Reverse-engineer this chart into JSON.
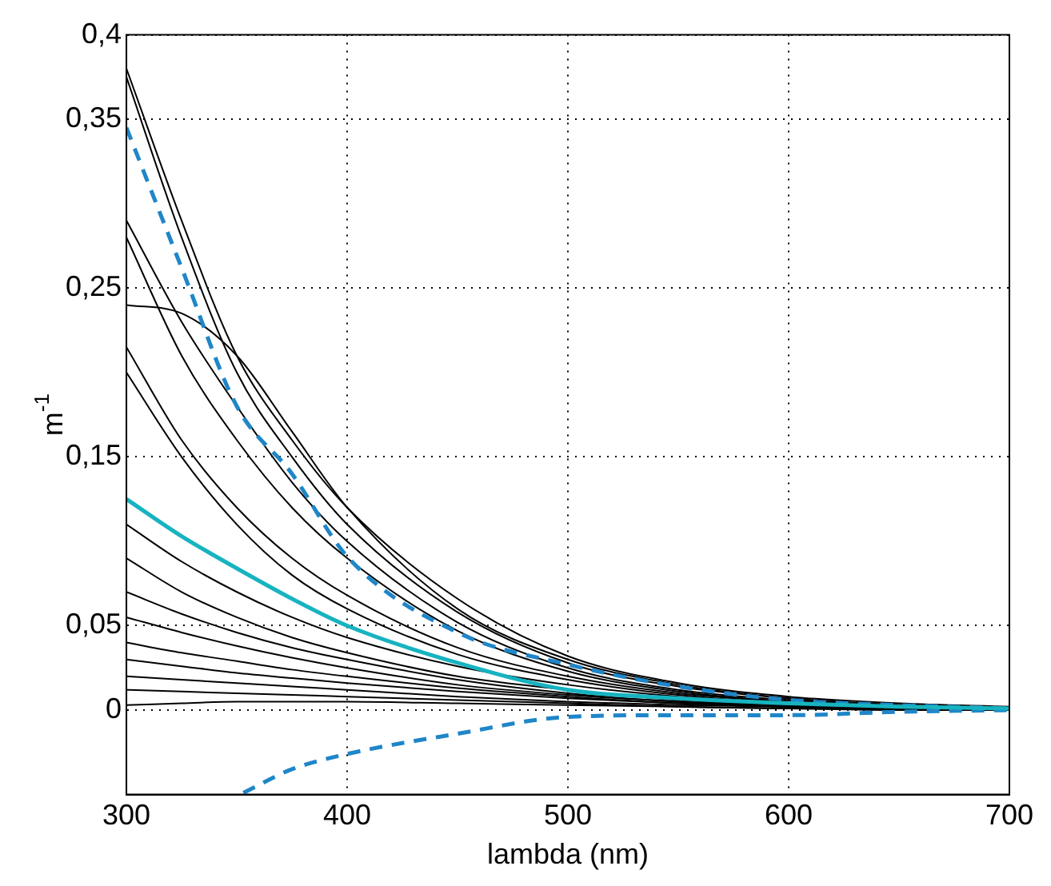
{
  "chart_data": {
    "type": "line",
    "xlabel": "lambda (nm)",
    "ylabel": "m$^{-1}$",
    "xlim": [
      300,
      700
    ],
    "xticks": [
      300,
      400,
      500,
      600,
      700
    ],
    "ylim": [
      -0.05,
      0.4
    ],
    "yticks": [
      0,
      {
        "value": 0.05,
        "label": "0,05"
      },
      {
        "value": 0.15,
        "label": "0,15"
      },
      {
        "value": 0.25,
        "label": "0,25"
      },
      {
        "value": 0.35,
        "label": "0,35"
      },
      {
        "value": 0.4,
        "label": "0,4"
      }
    ],
    "grid": true,
    "legend": false,
    "marker": "none",
    "x": [
      300,
      325,
      350,
      375,
      400,
      450,
      500,
      550,
      600,
      650,
      700
    ],
    "series": [
      {
        "color": "#000000",
        "values": [
          0.38,
          0.29,
          0.21,
          0.16,
          0.12,
          0.066,
          0.032,
          0.016,
          0.008,
          0.004,
          0.002
        ]
      },
      {
        "color": "#000000",
        "values": [
          0.375,
          0.28,
          0.2,
          0.15,
          0.11,
          0.058,
          0.028,
          0.014,
          0.007,
          0.003,
          0.001
        ]
      },
      {
        "color": "#000000",
        "values": [
          0.29,
          0.23,
          0.18,
          0.135,
          0.1,
          0.052,
          0.025,
          0.012,
          0.006,
          0.003,
          0.001
        ]
      },
      {
        "color": "#000000",
        "values": [
          0.28,
          0.21,
          0.16,
          0.12,
          0.09,
          0.047,
          0.023,
          0.011,
          0.005,
          0.002,
          0.001
        ]
      },
      {
        "color": "#000000",
        "values": [
          0.24,
          0.235,
          0.21,
          0.165,
          0.12,
          0.06,
          0.03,
          0.015,
          0.007,
          0.003,
          0.001
        ]
      },
      {
        "color": "#000000",
        "values": [
          0.215,
          0.16,
          0.12,
          0.09,
          0.068,
          0.037,
          0.02,
          0.01,
          0.005,
          0.002,
          0.001
        ]
      },
      {
        "color": "#000000",
        "values": [
          0.2,
          0.15,
          0.11,
          0.08,
          0.06,
          0.033,
          0.018,
          0.009,
          0.004,
          0.002,
          0.001
        ]
      },
      {
        "color": "#000000",
        "values": [
          0.11,
          0.088,
          0.07,
          0.055,
          0.043,
          0.026,
          0.015,
          0.008,
          0.004,
          0.002,
          0.001
        ]
      },
      {
        "color": "#000000",
        "values": [
          0.09,
          0.07,
          0.055,
          0.043,
          0.034,
          0.02,
          0.012,
          0.006,
          0.003,
          0.001,
          0
        ]
      },
      {
        "color": "#000000",
        "values": [
          0.07,
          0.057,
          0.046,
          0.037,
          0.03,
          0.018,
          0.01,
          0.005,
          0.003,
          0.001,
          0
        ]
      },
      {
        "color": "#000000",
        "values": [
          0.055,
          0.046,
          0.038,
          0.031,
          0.025,
          0.015,
          0.009,
          0.005,
          0.002,
          0.001,
          0
        ]
      },
      {
        "color": "#000000",
        "values": [
          0.04,
          0.034,
          0.029,
          0.024,
          0.02,
          0.013,
          0.008,
          0.004,
          0.002,
          0.001,
          0
        ]
      },
      {
        "color": "#000000",
        "values": [
          0.03,
          0.026,
          0.022,
          0.019,
          0.016,
          0.011,
          0.007,
          0.004,
          0.002,
          0.001,
          0
        ]
      },
      {
        "color": "#000000",
        "values": [
          0.02,
          0.018,
          0.016,
          0.014,
          0.012,
          0.008,
          0.005,
          0.003,
          0.002,
          0.001,
          0
        ]
      },
      {
        "color": "#000000",
        "values": [
          0.012,
          0.011,
          0.01,
          0.009,
          0.008,
          0.006,
          0.004,
          0.002,
          0.001,
          0.001,
          0
        ]
      },
      {
        "color": "#000000",
        "values": [
          0.003,
          0.004,
          0.005,
          0.005,
          0.005,
          0.004,
          0.003,
          0.002,
          0.001,
          0,
          0
        ]
      },
      {
        "color": "#17b3c0",
        "values": [
          0.125,
          0.103,
          0.084,
          0.066,
          0.05,
          0.028,
          0.012,
          0.007,
          0.004,
          0.002,
          0.001
        ]
      },
      {
        "color": "#1f86c8",
        "line_style": "dashed",
        "values": [
          0.345,
          0.262,
          0.18,
          0.14,
          0.091,
          0.046,
          0.027,
          0.014,
          0.006,
          0.003,
          0.001
        ]
      },
      {
        "color": "#1f86c8",
        "line_style": "dashed",
        "x": [
          353,
          375,
          400,
          450,
          500,
          550,
          600,
          650,
          700
        ],
        "values": [
          -0.049,
          -0.035,
          -0.026,
          -0.014,
          -0.004,
          -0.003,
          -0.003,
          -0.001,
          0
        ]
      }
    ]
  }
}
